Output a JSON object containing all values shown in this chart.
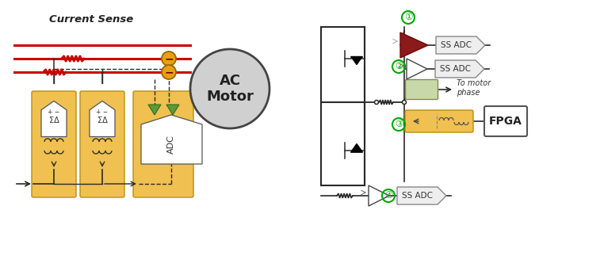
{
  "bg_color": "#ffffff",
  "left_label": "Current Sense",
  "motor_label1": "AC",
  "motor_label2": "Motor",
  "adc_label": "ADC",
  "sigma_delta": "ΣΔ",
  "ss_adc": "SS ADC",
  "fpga": "FPGA",
  "to_motor": "To motor\nphase",
  "red_line_color": "#cc0000",
  "orange_bg": "#f0c050",
  "green_tri_color": "#5a9a3a",
  "dark_red": "#8b1a1a",
  "green_circle": "#00aa00",
  "gray_motor": "#c8c8c8",
  "gold_color": "#d4860a",
  "light_green": "#c8d8a8",
  "line_color": "#2a2a2a",
  "white": "#ffffff"
}
